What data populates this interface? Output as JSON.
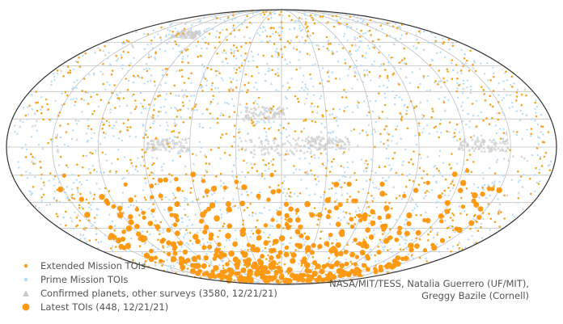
{
  "chart_data": {
    "type": "scatter",
    "projection": "mollweide all-sky",
    "title": "",
    "grid": true,
    "legend_position": "bottom-left",
    "series": [
      {
        "name": "Extended Mission TOIs",
        "color": "#f5a623",
        "marker": "small dot",
        "distribution": "all-sky, denser toward the northern and southern ecliptic poles"
      },
      {
        "name": "Prime Mission TOIs",
        "color": "#b7dcf7",
        "marker": "small dot",
        "distribution": "all-sky, concentrated near the poles"
      },
      {
        "name": "Confirmed planets, other surveys (3580, 12/21/21)",
        "color": "#cccccc",
        "marker": "triangle",
        "distribution": "clustered in the equatorial band and the upper-left region"
      },
      {
        "name": "Latest TOIs (448, 12/21/21)",
        "color": "#ff9a14",
        "marker": "large dot",
        "distribution": "southern hemisphere, densest near the bottom"
      }
    ]
  },
  "legend": {
    "items": [
      {
        "label": "Extended Mission TOIs",
        "color": "#f5a623",
        "shape": "small-dot"
      },
      {
        "label": "Prime Mission TOIs",
        "color": "#b7dcf7",
        "shape": "small-dot"
      },
      {
        "label": "Confirmed planets, other surveys (3580, 12/21/21)",
        "color": "#cccccc",
        "shape": "triangle"
      },
      {
        "label": "Latest TOIs (448, 12/21/21)",
        "color": "#ff9a14",
        "shape": "large-dot"
      }
    ]
  },
  "credit": {
    "line1": "NASA/MIT/TESS, Natalia Guerrero (UF/MIT),",
    "line2": "Greggy Bazile (Cornell)"
  }
}
